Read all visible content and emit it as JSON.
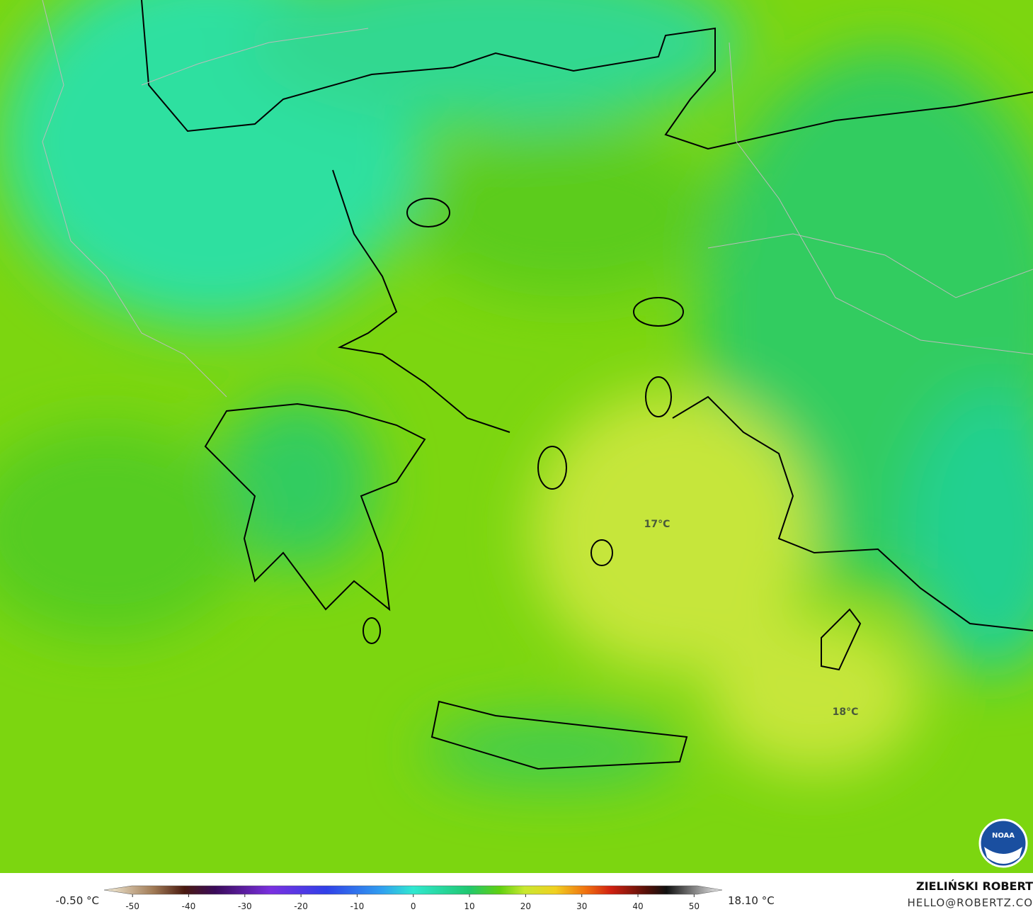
{
  "map": {
    "labels": [
      "17°C",
      "18°C"
    ]
  },
  "colorbar": {
    "lim": [
      -55,
      55
    ],
    "ticks": [
      -50,
      -40,
      -30,
      -20,
      -10,
      0,
      10,
      20,
      30,
      40,
      50
    ],
    "min_label": "-0.50 °C",
    "max_label": "18.10 °C"
  },
  "credits": {
    "author": "ZIELIŃSKI ROBERT",
    "email": "HELLO@ROBERTZ.CO",
    "logo": "NOAA"
  }
}
